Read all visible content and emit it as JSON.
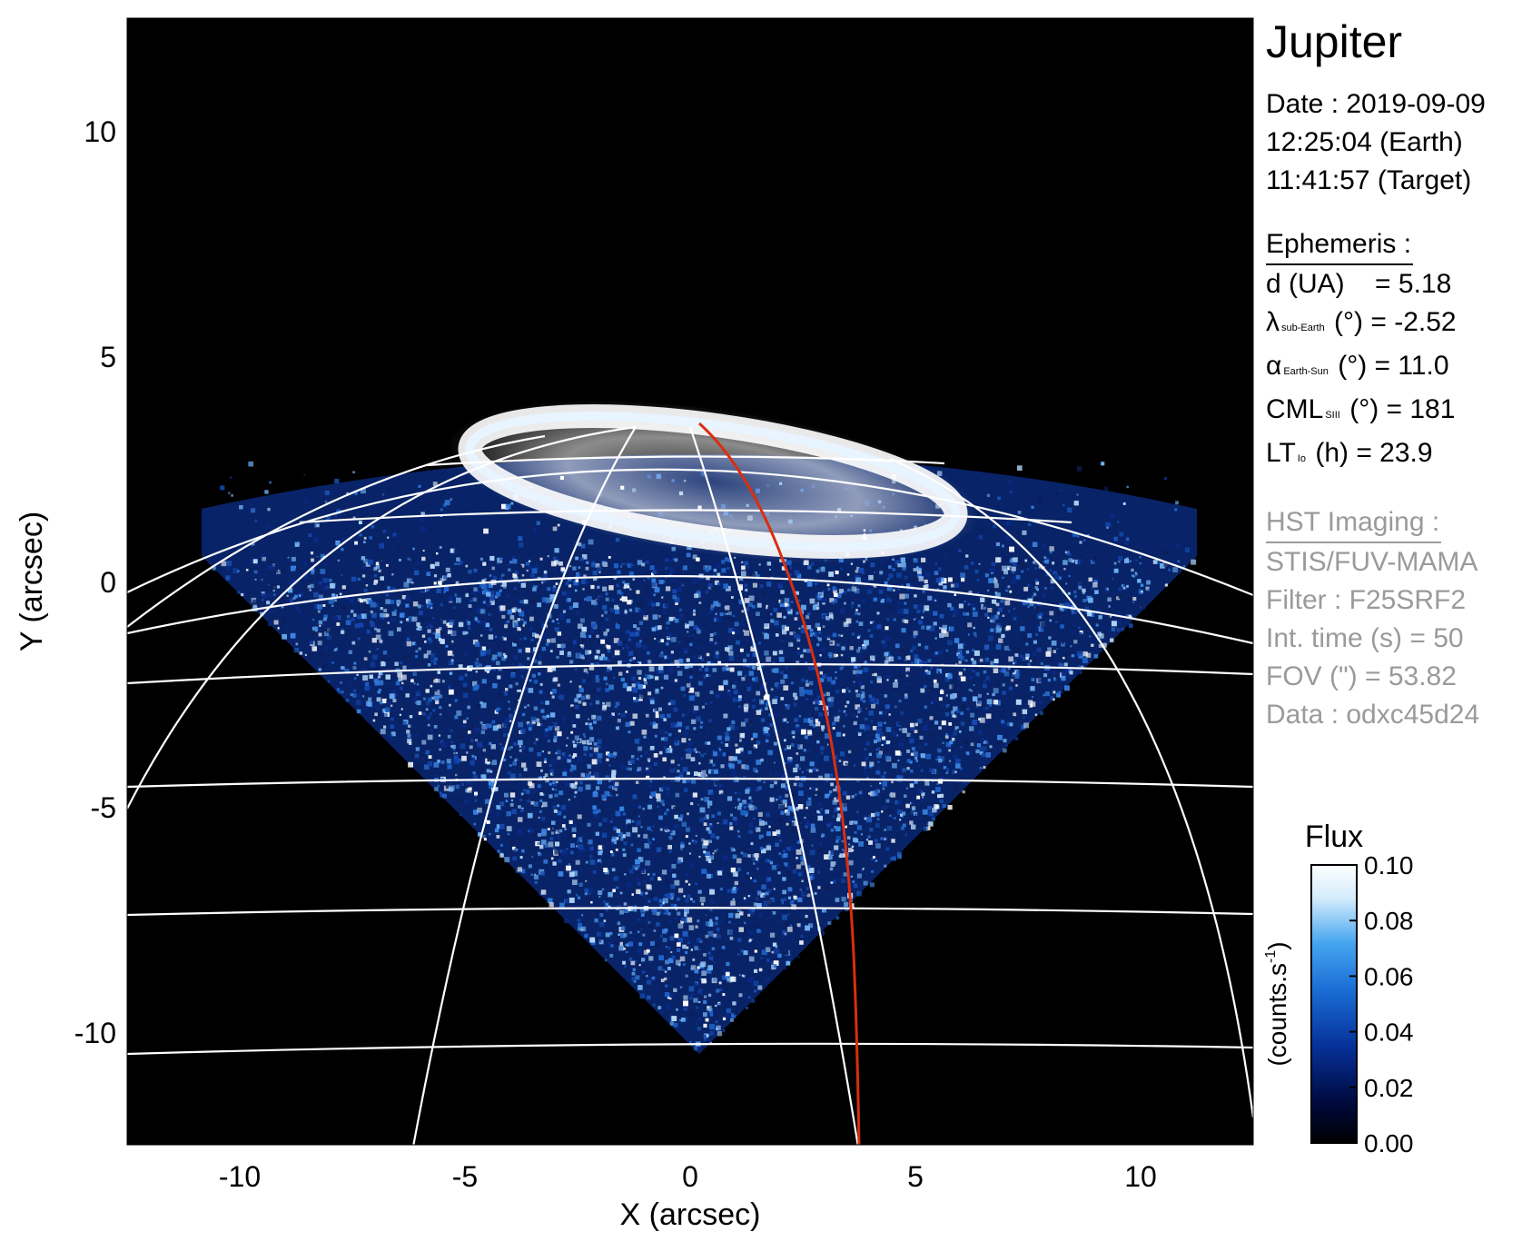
{
  "image": {
    "x_axis_label": "X (arcsec)",
    "y_axis_label": "Y (arcsec)",
    "x_ticks": [
      -10,
      -5,
      0,
      5,
      10
    ],
    "y_ticks": [
      10,
      5,
      0,
      -5,
      -10
    ],
    "x_range": [
      -12.5,
      12.5
    ],
    "y_range": [
      -12.5,
      12.5
    ],
    "background_color": "#000000",
    "grid_color": "#ffffff",
    "trace_color": "#d92e0f"
  },
  "panel": {
    "title": "Jupiter",
    "date_line": "Date : 2019-09-09",
    "earth_time": "12:25:04 (Earth)",
    "target_time": "11:41:57 (Target)",
    "ephemeris_heading": "Ephemeris :",
    "ephemeris": {
      "d_label": "d (UA)",
      "d_value": "= 5.18",
      "lat_symbol": "λ",
      "lat_sub": "sub-Earth",
      "lat_value": "(°) = -2.52",
      "phase_symbol": "α",
      "phase_sub": "Earth-Sun",
      "phase_value": "(°) = 11.0",
      "cml_label": "CML",
      "cml_sub": "SIII",
      "cml_value": "(°) = 181",
      "lt_label": "LT",
      "lt_sub": "Io",
      "lt_value": "(h) = 23.9"
    },
    "hst_heading": "HST Imaging :",
    "instrument": "STIS/FUV-MAMA",
    "filter": "Filter : F25SRF2",
    "int_time": "Int. time (s) = 50",
    "fov": "FOV (\") = 53.82",
    "data_id": "Data : odxc45d24"
  },
  "colorbar": {
    "title": "Flux",
    "label": "(counts.s",
    "label_exponent": "-1",
    "label_close": ")",
    "ticks": [
      "0.10",
      "0.08",
      "0.06",
      "0.04",
      "0.02",
      "0.00"
    ],
    "range": [
      0,
      0.1
    ],
    "colors": [
      "#000000",
      "#000a40",
      "#06329a",
      "#1a6dd6",
      "#46a6f0",
      "#d4ecfc",
      "#ffffff"
    ]
  }
}
